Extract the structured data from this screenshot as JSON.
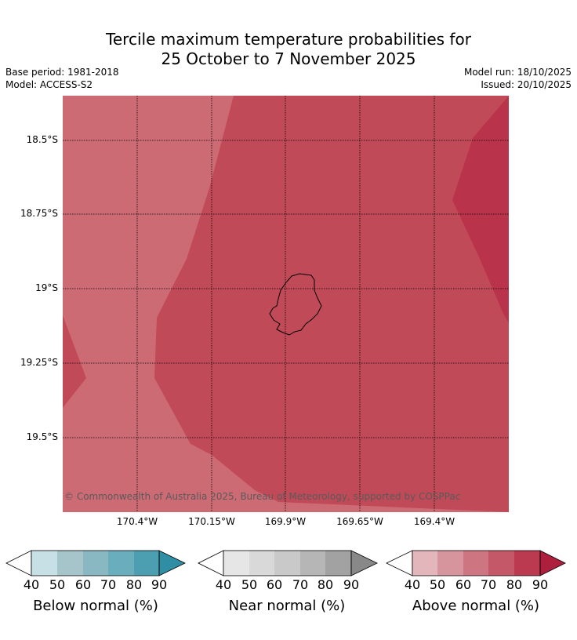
{
  "title_line1": "Tercile maximum temperature probabilities for",
  "title_line2": "25 October to 7 November 2025",
  "base_period": "Base period: 1981-2018",
  "model": "Model: ACCESS-S2",
  "model_run": "Model run: 18/10/2025",
  "issued": "Issued: 20/10/2025",
  "copyright": "© Commonwealth of Australia 2025, Bureau of Meteorology, supported by COSPPac",
  "lat_labels": [
    "18.5°S",
    "18.75°S",
    "19°S",
    "19.25°S",
    "19.5°S"
  ],
  "lon_labels": [
    "170.4°W",
    "170.15°W",
    "169.9°W",
    "169.65°W",
    "169.4°W"
  ],
  "colors": {
    "above_60_70": "#cd6b75",
    "above_70_80": "#c14a58",
    "above_80_90": "#b9344a",
    "coast": "#000000"
  },
  "colorbars": [
    {
      "title": "Below normal (%)",
      "ticks": [
        "40",
        "50",
        "60",
        "70",
        "80",
        "90"
      ],
      "colors": [
        "#c7e0e6",
        "#a5c5cb",
        "#89b7c2",
        "#6aadbc",
        "#4b9fb0",
        "#2f8ea3"
      ]
    },
    {
      "title": "Near normal (%)",
      "ticks": [
        "40",
        "50",
        "60",
        "70",
        "80",
        "90"
      ],
      "colors": [
        "#e6e6e6",
        "#d9d9d9",
        "#c9c9c9",
        "#b6b6b6",
        "#a2a2a2",
        "#888888"
      ]
    },
    {
      "title": "Above normal (%)",
      "ticks": [
        "40",
        "50",
        "60",
        "70",
        "80",
        "90"
      ],
      "colors": [
        "#e2b6bb",
        "#d6959c",
        "#cd7580",
        "#c45868",
        "#bb3a50",
        "#ae1f3e"
      ]
    }
  ]
}
